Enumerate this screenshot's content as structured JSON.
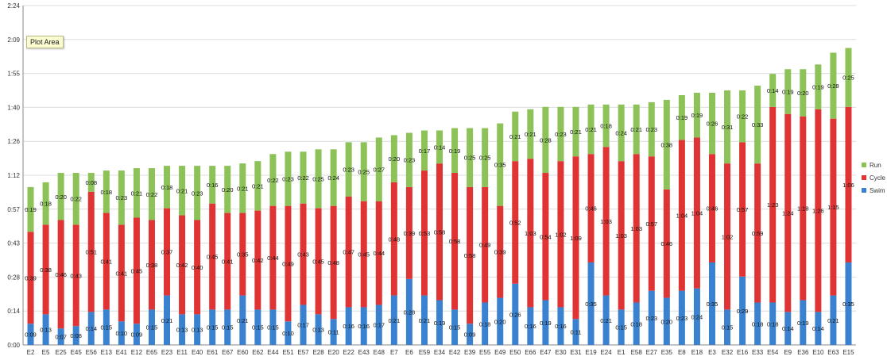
{
  "chart_data": {
    "type": "bar",
    "stacked": true,
    "title": "",
    "xlabel": "",
    "ylabel": "",
    "y_unit": "hours:minutes",
    "ylim_minutes": [
      0,
      144
    ],
    "y_ticks": [
      "0:00",
      "0:14",
      "0:28",
      "0:43",
      "0:57",
      "1:12",
      "1:26",
      "1:40",
      "1:55",
      "2:09",
      "2:24"
    ],
    "grid": true,
    "legend_position": "right",
    "categories": [
      "E2",
      "E5",
      "E25",
      "E45",
      "E56",
      "E13",
      "E41",
      "E12",
      "E65",
      "E23",
      "E11",
      "E40",
      "E61",
      "E67",
      "E60",
      "E62",
      "E44",
      "E51",
      "E57",
      "E28",
      "E20",
      "E22",
      "E43",
      "E48",
      "E7",
      "E6",
      "E59",
      "E34",
      "E42",
      "E39",
      "E55",
      "E49",
      "E50",
      "E66",
      "E47",
      "E30",
      "E31",
      "E19",
      "E24",
      "E1",
      "E58",
      "E27",
      "E35",
      "E8",
      "E18",
      "E3",
      "E32",
      "E16",
      "E33",
      "E54",
      "E9",
      "E36",
      "E10",
      "E63",
      "E15"
    ],
    "series": [
      {
        "name": "Swim",
        "color": "#3a82cf",
        "values": [
          9,
          13,
          7,
          8,
          14,
          15,
          10,
          9,
          15,
          21,
          13,
          13,
          15,
          15,
          21,
          15,
          15,
          10,
          17,
          13,
          11,
          16,
          16,
          17,
          21,
          28,
          21,
          19,
          15,
          9,
          18,
          20,
          26,
          16,
          19,
          16,
          11,
          35,
          21,
          15,
          18,
          23,
          20,
          23,
          24,
          35,
          15,
          29,
          18,
          18,
          14,
          19,
          14,
          21,
          35
        ],
        "labels": [
          "0:09",
          "0:13",
          "0:07",
          "0:08",
          "0:14",
          "0:15",
          "0:10",
          "0:09",
          "0:15",
          "0:21",
          "0:13",
          "0:13",
          "0:15",
          "0:15",
          "0:21",
          "0:15",
          "0:15",
          "0:10",
          "0:17",
          "0:13",
          "0:11",
          "0:16",
          "0:16",
          "0:17",
          "0:21",
          "0:28",
          "0:21",
          "0:19",
          "0:15",
          "0:09",
          "0:18",
          "0:20",
          "0:26",
          "0:16",
          "0:19",
          "0:16",
          "0:11",
          "0:35",
          "0:21",
          "0:15",
          "0:18",
          "0:23",
          "0:20",
          "0:23",
          "0:24",
          "0:35",
          "0:15",
          "0:29",
          "0:18",
          "0:18",
          "0:14",
          "0:19",
          "0:14",
          "0:21",
          "0:35"
        ]
      },
      {
        "name": "Cycle",
        "color": "#e03434",
        "values": [
          39,
          38,
          46,
          43,
          51,
          41,
          41,
          45,
          38,
          37,
          42,
          40,
          45,
          41,
          35,
          42,
          44,
          49,
          43,
          45,
          48,
          47,
          45,
          44,
          48,
          39,
          53,
          58,
          58,
          58,
          49,
          39,
          52,
          63,
          54,
          62,
          69,
          46,
          63,
          63,
          63,
          57,
          46,
          64,
          64,
          46,
          62,
          57,
          59,
          83,
          84,
          78,
          86,
          75,
          66
        ],
        "labels": [
          "0:39",
          "0:38",
          "0:46",
          "0:43",
          "0:51",
          "0:41",
          "0:41",
          "0:45",
          "0:38",
          "0:37",
          "0:42",
          "0:40",
          "0:45",
          "0:41",
          "0:35",
          "0:42",
          "0:44",
          "0:49",
          "0:43",
          "0:45",
          "0:48",
          "0:47",
          "0:45",
          "0:44",
          "0:48",
          "0:39",
          "0:53",
          "0:58",
          "0:58",
          "0:58",
          "0:49",
          "0:39",
          "0:52",
          "1:03",
          "0:54",
          "1:02",
          "1:09",
          "0:46",
          "1:03",
          "1:03",
          "1:03",
          "0:57",
          "0:46",
          "1:04",
          "1:04",
          "0:46",
          "1:02",
          "0:57",
          "0:59",
          "1:23",
          "1:24",
          "1:18",
          "1:26",
          "1:15",
          "1:06"
        ]
      },
      {
        "name": "Run",
        "color": "#8cc257",
        "values": [
          19,
          18,
          20,
          22,
          8,
          18,
          23,
          21,
          22,
          18,
          21,
          23,
          16,
          20,
          21,
          21,
          22,
          23,
          22,
          25,
          24,
          23,
          25,
          27,
          20,
          23,
          17,
          14,
          19,
          25,
          25,
          35,
          21,
          21,
          28,
          23,
          21,
          21,
          18,
          24,
          21,
          23,
          38,
          19,
          19,
          26,
          31,
          22,
          33,
          14,
          19,
          20,
          19,
          28,
          25
        ],
        "labels": [
          "0:19",
          "0:18",
          "0:20",
          "0:22",
          "0:08",
          "0:18",
          "0:23",
          "0:21",
          "0:22",
          "0:18",
          "0:21",
          "0:23",
          "0:16",
          "0:20",
          "0:21",
          "0:21",
          "0:22",
          "0:23",
          "0:22",
          "0:25",
          "0:24",
          "0:23",
          "0:25",
          "0:27",
          "0:20",
          "0:23",
          "0:17",
          "0:14",
          "0:19",
          "0:25",
          "0:25",
          "0:35",
          "0:21",
          "0:21",
          "0:28",
          "0:23",
          "0:21",
          "0:21",
          "0:18",
          "0:24",
          "0:21",
          "0:23",
          "0:38",
          "0:19",
          "0:19",
          "0:26",
          "0:31",
          "0:22",
          "0:33",
          "0:14",
          "0:19",
          "0:20",
          "0:19",
          "0:28",
          "0:25"
        ]
      }
    ]
  },
  "ui": {
    "tooltip_text": "Plot Area"
  }
}
